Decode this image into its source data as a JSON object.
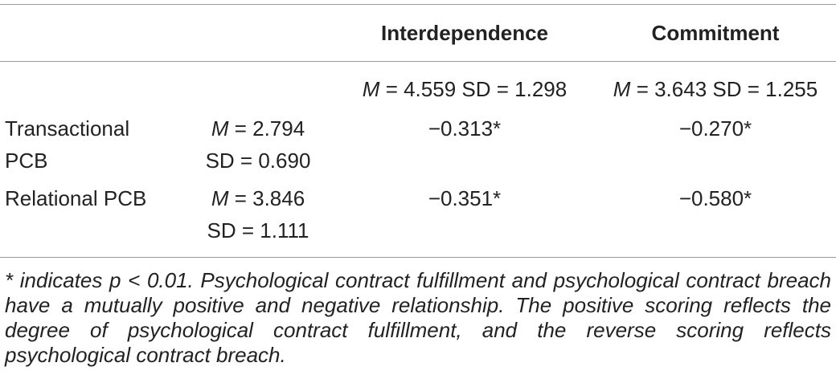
{
  "table": {
    "columns": [
      {
        "label": "Interdependence",
        "stats": {
          "m_sym": "M",
          "m_text": " = 4.559 SD = 1.298"
        }
      },
      {
        "label": "Commitment",
        "stats": {
          "m_sym": "M",
          "m_text": " = 3.643 SD = 1.255"
        }
      }
    ],
    "rows": [
      {
        "label_line1": "Transactional",
        "label_line2": "PCB",
        "mean_sym": "M",
        "mean_text": " = 2.794",
        "sd": "SD = 0.690",
        "values": [
          "−0.313*",
          "−0.270*"
        ]
      },
      {
        "label_line1": "Relational PCB",
        "label_line2": "",
        "mean_sym": "M",
        "mean_text": " = 3.846",
        "sd": "SD = 1.111",
        "values": [
          "−0.351*",
          "−0.580*"
        ]
      }
    ]
  },
  "footnote": "* indicates p < 0.01. Psychological contract fulfillment and psychological contract breach have a mutually positive and negative relationship. The positive scoring reflects the degree of psychological contract fulfillment, and the reverse scoring reflects psychological contract breach."
}
